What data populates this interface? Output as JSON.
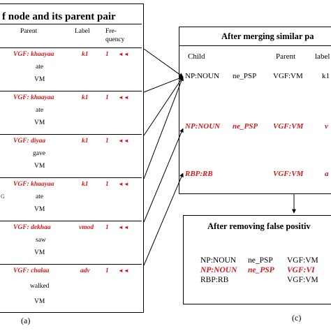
{
  "left_panel": {
    "title": "f node and its parent pair",
    "headers": {
      "parent": "Parent",
      "label": "Label",
      "frequency_1": "Fre-",
      "frequency_2": "quency"
    },
    "rows": [
      {
        "parent_tag": "VGF: khaayaa",
        "word": "ate",
        "pos": "VM",
        "label": "k1",
        "frequency": "1",
        "arrows": "◄◄",
        "left_fragment": ""
      },
      {
        "parent_tag": "VGF: khaayaa",
        "word": "ate",
        "pos": "VM",
        "label": "k1",
        "frequency": "1",
        "arrows": "◄◄",
        "left_fragment": ""
      },
      {
        "parent_tag": "VGF: diyaa",
        "word": "gave",
        "pos": "VM",
        "label": "k1",
        "frequency": "1",
        "arrows": "◄◄",
        "left_fragment": ""
      },
      {
        "parent_tag": "VGF: khaayaa",
        "word": "ate",
        "pos": "VM",
        "label": "k1",
        "frequency": "1",
        "arrows": "◄◄",
        "left_fragment": "G"
      },
      {
        "parent_tag": "VGF: dekhaa",
        "word": "saw",
        "pos": "VM",
        "label": "vmod",
        "frequency": "1",
        "arrows": "◄◄",
        "left_fragment": ""
      },
      {
        "parent_tag": "VGF: chalaa",
        "word": "walked",
        "pos": "VM",
        "label": "adv",
        "frequency": "1",
        "arrows": "◄◄",
        "left_fragment": ""
      }
    ],
    "caption": "(a)"
  },
  "merge_box": {
    "title": "After merging similar pa",
    "headers": {
      "child": "Child",
      "parent": "Parent",
      "label": "label"
    },
    "row1": {
      "child": "NP:NOUN",
      "psp": "ne_PSP",
      "parent": "VGF:VM",
      "label": "k1"
    },
    "row2": {
      "child": "NP:NOUN",
      "psp": "ne_PSP",
      "parent": "VGF:VM",
      "label": "v"
    },
    "row3": {
      "child": "RBP:RB",
      "parent": "VGF:VM",
      "label": "a"
    }
  },
  "remove_box": {
    "title": "After removing false positiv",
    "row1": {
      "child": "NP:NOUN",
      "psp": "ne_PSP",
      "parent": "VGF:VM"
    },
    "row2": {
      "child": "NP:NOUN",
      "psp": "ne_PSP",
      "parent": "VGF:VI"
    },
    "row3": {
      "child": "RBP:RB",
      "parent": "VGF:VM"
    },
    "caption": "(c)"
  },
  "colors": {
    "highlight": "#d7191c",
    "line": "#000000"
  }
}
